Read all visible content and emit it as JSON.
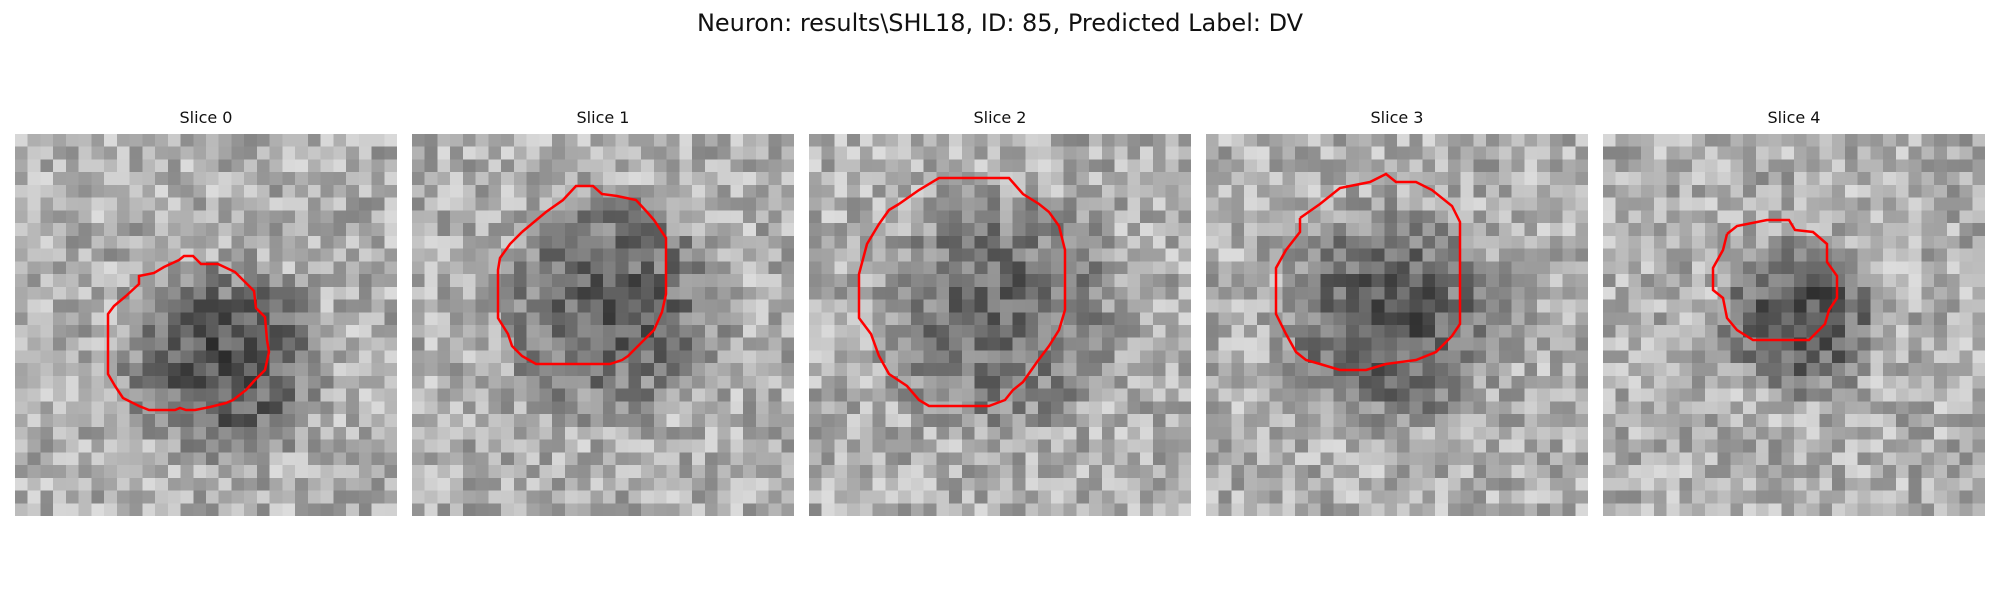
{
  "figure": {
    "title": "Neuron: results\\SHL18, ID: 85, Predicted Label: DV"
  },
  "colors": {
    "contour": "#ff0000",
    "background": "#ffffff"
  },
  "slices": [
    {
      "label": "Slice 0"
    },
    {
      "label": "Slice 1"
    },
    {
      "label": "Slice 2"
    },
    {
      "label": "Slice 3"
    },
    {
      "label": "Slice 4"
    }
  ]
}
